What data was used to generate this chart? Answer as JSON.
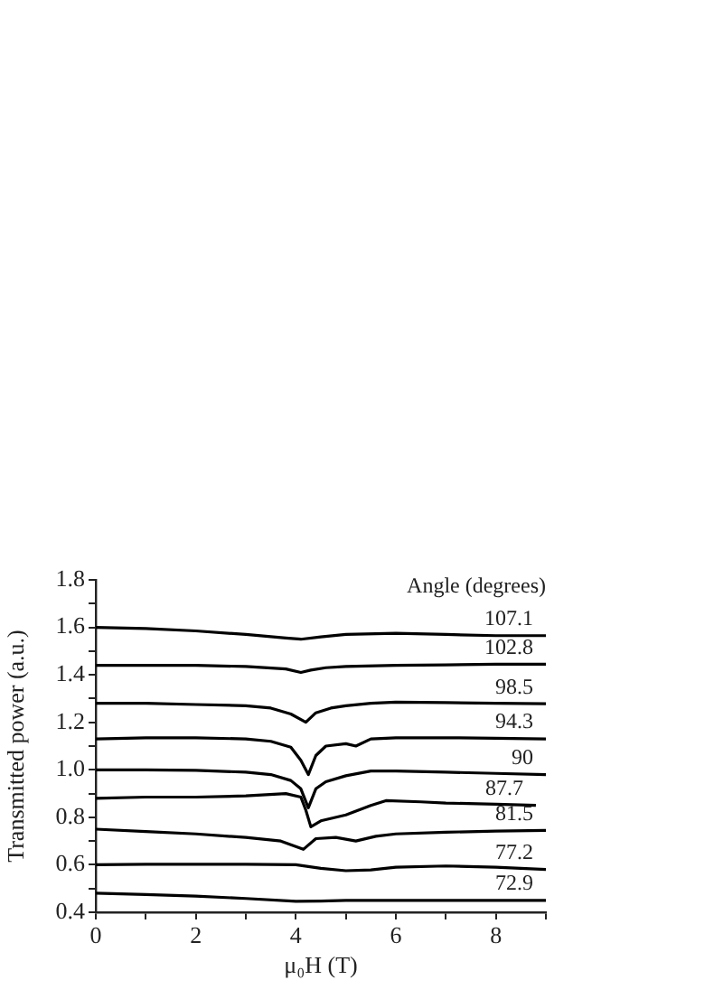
{
  "chart_data": {
    "type": "line",
    "xlabel": "μ₀H (T)",
    "ylabel": "Transmitted power (a.u.)",
    "legend_title": "Angle (degrees)",
    "xlim": [
      0,
      9
    ],
    "xticks": [
      0,
      {
        "value": 1,
        "label": null
      },
      2,
      {
        "value": 3,
        "label": null
      },
      4,
      {
        "value": 5,
        "label": null
      },
      6,
      {
        "value": 7,
        "label": null
      },
      8,
      {
        "value": 9,
        "label": null
      }
    ],
    "ylim": [
      0.4,
      1.8
    ],
    "yticks": [
      0.4,
      {
        "value": 0.5,
        "label": null
      },
      0.6,
      {
        "value": 0.7,
        "label": null
      },
      0.8,
      {
        "value": 0.9,
        "label": null
      },
      {
        "value": 1,
        "label": "1.0"
      },
      {
        "value": 1.1,
        "label": null
      },
      1.2,
      {
        "value": 1.3,
        "label": null
      },
      1.4,
      {
        "value": 1.5,
        "label": null
      },
      1.6,
      {
        "value": 1.7,
        "label": null
      },
      1.8
    ],
    "grid": false,
    "marker": "none",
    "line_style": "solid",
    "series": [
      {
        "name": "107.1",
        "color": "#000000",
        "x": [
          0,
          1,
          2,
          3,
          3.8,
          4.1,
          4.5,
          5,
          6,
          7,
          8,
          9
        ],
        "values": [
          1.6,
          1.595,
          1.585,
          1.57,
          1.555,
          1.55,
          1.56,
          1.57,
          1.575,
          1.57,
          1.565,
          1.565
        ]
      },
      {
        "name": "102.8",
        "color": "#000000",
        "x": [
          0,
          1,
          2,
          3,
          3.8,
          4.1,
          4.3,
          4.6,
          5,
          6,
          7,
          8,
          9
        ],
        "values": [
          1.44,
          1.44,
          1.44,
          1.435,
          1.425,
          1.41,
          1.42,
          1.43,
          1.435,
          1.44,
          1.442,
          1.445,
          1.445
        ]
      },
      {
        "name": "98.5",
        "color": "#000000",
        "x": [
          0,
          1,
          2,
          3,
          3.5,
          3.9,
          4.2,
          4.4,
          4.7,
          5,
          5.5,
          6,
          7,
          8,
          9
        ],
        "values": [
          1.28,
          1.28,
          1.275,
          1.27,
          1.26,
          1.235,
          1.2,
          1.24,
          1.26,
          1.27,
          1.28,
          1.285,
          1.283,
          1.28,
          1.278
        ]
      },
      {
        "name": "94.3",
        "color": "#000000",
        "x": [
          0,
          1,
          2,
          3,
          3.5,
          3.9,
          4.1,
          4.25,
          4.4,
          4.6,
          5,
          5.2,
          5.5,
          6,
          7,
          8,
          9
        ],
        "values": [
          1.13,
          1.135,
          1.135,
          1.13,
          1.12,
          1.095,
          1.04,
          0.98,
          1.06,
          1.1,
          1.11,
          1.1,
          1.13,
          1.135,
          1.135,
          1.133,
          1.13
        ]
      },
      {
        "name": "90",
        "color": "#000000",
        "x": [
          0,
          1,
          2,
          3,
          3.5,
          3.9,
          4.1,
          4.25,
          4.4,
          4.6,
          5,
          5.5,
          6,
          7,
          8,
          9
        ],
        "values": [
          1.0,
          1.0,
          0.998,
          0.99,
          0.98,
          0.955,
          0.92,
          0.84,
          0.92,
          0.95,
          0.975,
          0.995,
          0.995,
          0.99,
          0.985,
          0.98
        ]
      },
      {
        "name": "87.7",
        "color": "#000000",
        "x": [
          0,
          1,
          2,
          3,
          3.8,
          4.1,
          4.2,
          4.3,
          4.5,
          5,
          5.5,
          5.8,
          6.5,
          7,
          8,
          8.8
        ],
        "values": [
          0.88,
          0.885,
          0.885,
          0.89,
          0.9,
          0.885,
          0.83,
          0.76,
          0.785,
          0.81,
          0.85,
          0.87,
          0.865,
          0.86,
          0.855,
          0.85
        ]
      },
      {
        "name": "81.5",
        "color": "#000000",
        "x": [
          0,
          1,
          2,
          3,
          3.7,
          4.15,
          4.4,
          4.8,
          5.2,
          5.6,
          6,
          7,
          8,
          9
        ],
        "values": [
          0.75,
          0.74,
          0.73,
          0.715,
          0.7,
          0.665,
          0.71,
          0.715,
          0.7,
          0.72,
          0.73,
          0.737,
          0.742,
          0.745
        ]
      },
      {
        "name": "77.2",
        "color": "#000000",
        "x": [
          0,
          1,
          2,
          3,
          4,
          4.5,
          5,
          5.5,
          6,
          7,
          8,
          9
        ],
        "values": [
          0.6,
          0.602,
          0.602,
          0.602,
          0.6,
          0.585,
          0.575,
          0.578,
          0.59,
          0.595,
          0.59,
          0.58
        ]
      },
      {
        "name": "72.9",
        "color": "#000000",
        "x": [
          0,
          1,
          2,
          3,
          4,
          4.5,
          5,
          6,
          7,
          8,
          9
        ],
        "values": [
          0.48,
          0.475,
          0.468,
          0.458,
          0.446,
          0.447,
          0.45,
          0.45,
          0.45,
          0.45,
          0.45
        ]
      }
    ]
  }
}
